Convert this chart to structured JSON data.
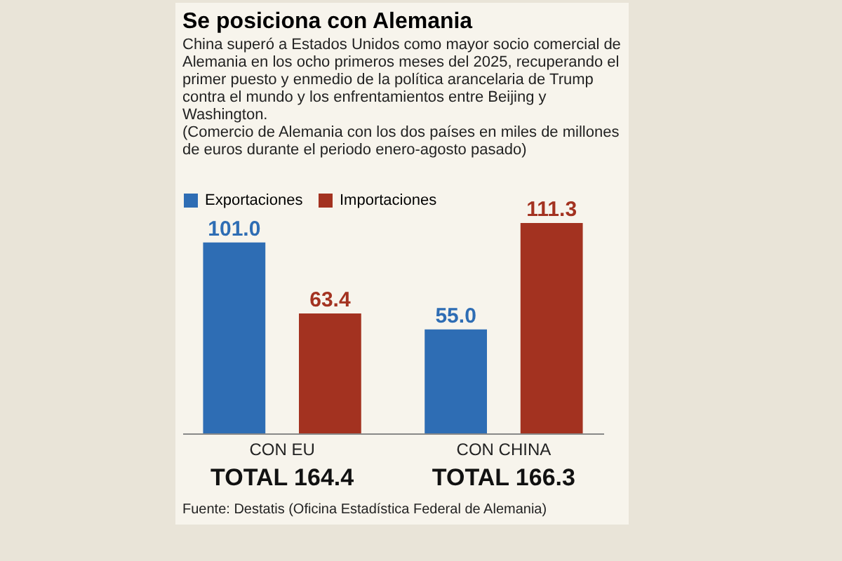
{
  "chart_data": {
    "type": "bar",
    "title": "Se posiciona con Alemania",
    "subtitle": "China superó a Estados Unidos como mayor socio comercial de Alemania en los ocho primeros meses del 2025, recuperando el primer puesto y enmedio de la política arancelaria de Trump contra el mundo y los enfrentamientos entre Beijing y Washington.",
    "categories": [
      "CON EU",
      "CON CHINA"
    ],
    "series": [
      {
        "name": "Exportaciones",
        "color": "#2e6db4",
        "values": [
          101.0,
          55.0
        ],
        "value_labels": [
          "101.0",
          "55.0"
        ]
      },
      {
        "name": "Importaciones",
        "color": "#a33220",
        "values": [
          63.4,
          111.3
        ],
        "value_labels": [
          "63.4",
          "111.3"
        ]
      }
    ],
    "totals": [
      "TOTAL 164.4",
      "TOTAL 166.3"
    ],
    "legend": "top left",
    "grid": false,
    "annotations": [
      "(Comercio de Alemania con los dos países en miles de millones de euros durante el periodo enero-agosto pasado)",
      "Fuente: Destatis (Oficina Estadística Federal de Alemania)"
    ]
  }
}
